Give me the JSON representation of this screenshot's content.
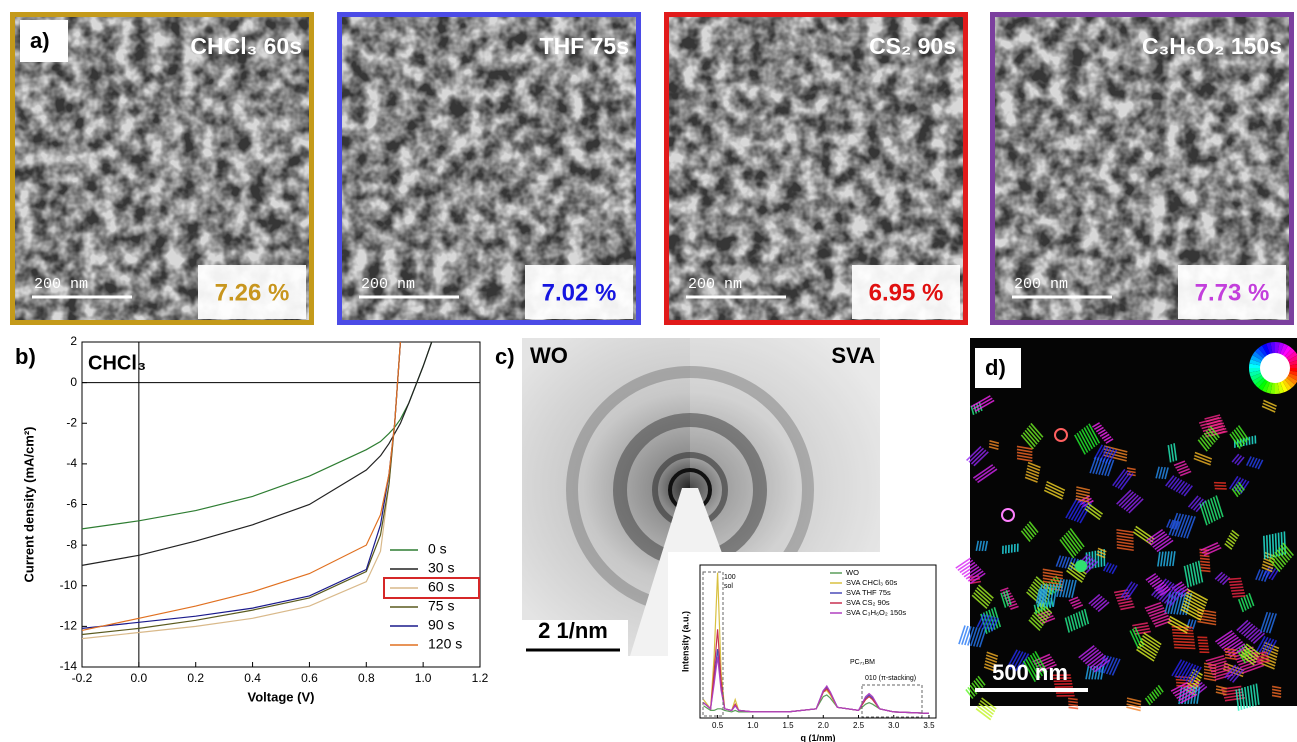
{
  "panel_a": {
    "label": "a)",
    "images": [
      {
        "solvent": "CHCl₃ 60s",
        "efficiency": "7.26 %",
        "scale_bar": "200 nm",
        "color": "#c49a1a",
        "efficiency_color": "#c8961e"
      },
      {
        "solvent": "THF 75s",
        "efficiency": "7.02 %",
        "scale_bar": "200 nm",
        "color": "#4b4be6",
        "efficiency_color": "#1515e0"
      },
      {
        "solvent": "CS₂ 90s",
        "efficiency": "6.95 %",
        "scale_bar": "200 nm",
        "color": "#e11a1a",
        "efficiency_color": "#e01010"
      },
      {
        "solvent": "C₃H₆O₂ 150s",
        "efficiency": "7.73 %",
        "scale_bar": "200 nm",
        "color": "#7b3f9e",
        "efficiency_color": "#c33fdc"
      }
    ]
  },
  "panel_b": {
    "label": "b)"
  },
  "panel_c": {
    "label": "c)",
    "left": "WO",
    "right": "SVA",
    "scale_bar": "2 1/nm"
  },
  "panel_d": {
    "label": "d)",
    "scale_bar": "500 nm"
  },
  "chart_data": [
    {
      "type": "line",
      "annotation": "CHCl₃",
      "x_label": "Voltage (V)",
      "y_label": "Current density (mA/cm²)",
      "x": [
        -0.2,
        0,
        0.2,
        0.4,
        0.6,
        0.8,
        0.85,
        0.88,
        0.9,
        0.92,
        0.95,
        1.0,
        1.03
      ],
      "series": [
        {
          "name": "0 s",
          "color": "#2e7d32",
          "values": [
            -7.2,
            -6.8,
            -6.3,
            -5.6,
            -4.6,
            -3.3,
            -2.9,
            -2.5,
            -2.2,
            -1.8,
            -1.0,
            0.8,
            2
          ]
        },
        {
          "name": "30 s",
          "color": "#222222",
          "values": [
            -9.0,
            -8.5,
            -7.8,
            -7.0,
            -6.0,
            -4.3,
            -3.6,
            -3.0,
            -2.5,
            -2.0,
            -1.0,
            0.8,
            2
          ]
        },
        {
          "name": "60 s",
          "color": "#d9b98a",
          "highlight": true,
          "values": [
            -12.6,
            -12.3,
            -12.0,
            -11.6,
            -11.0,
            -9.8,
            -8.3,
            -5,
            -2,
            2,
            null,
            null,
            null
          ]
        },
        {
          "name": "75 s",
          "color": "#5a5a1e",
          "values": [
            -12.4,
            -12.1,
            -11.7,
            -11.2,
            -10.6,
            -9.3,
            -7.5,
            -5,
            -2,
            2,
            null,
            null,
            null
          ]
        },
        {
          "name": "90 s",
          "color": "#1a1a8c",
          "values": [
            -12.1,
            -11.8,
            -11.5,
            -11.1,
            -10.5,
            -9.2,
            -7,
            -4.5,
            -2,
            2,
            null,
            null,
            null
          ]
        },
        {
          "name": "120 s",
          "color": "#e07020",
          "values": [
            -12.2,
            -11.6,
            -11.0,
            -10.3,
            -9.4,
            -8.0,
            -6.5,
            -4.5,
            -2,
            2,
            null,
            null,
            null
          ]
        }
      ],
      "xlim": [
        -0.2,
        1.2
      ],
      "ylim": [
        -14,
        2
      ],
      "xticks": [
        -0.2,
        {
          "value": 0,
          "label": "0.0"
        },
        0.2,
        0.4,
        0.6,
        0.8,
        {
          "value": 1,
          "label": "1.0"
        },
        1.2
      ],
      "yticks": [
        -14,
        -12,
        -10,
        -8,
        -6,
        -4,
        -2,
        0,
        2
      ]
    },
    {
      "type": "line",
      "x_label": "q (1/nm)",
      "y_label": "Intensity (a.u.)",
      "annotations": [
        "100",
        "sol",
        "PC₇₁BM",
        "010 (π-stacking)"
      ],
      "x": [
        0.3,
        0.4,
        0.45,
        0.5,
        0.55,
        0.6,
        0.7,
        0.75,
        0.8,
        1.0,
        1.5,
        1.9,
        2.0,
        2.05,
        2.1,
        2.2,
        2.5,
        2.6,
        2.65,
        2.7,
        2.8,
        3.0,
        3.5
      ],
      "series": [
        {
          "name": "WO",
          "color": "#5a9e5a",
          "values": [
            8,
            5,
            5,
            6,
            6,
            5,
            4,
            5,
            4,
            4,
            4,
            6,
            14,
            15,
            13,
            7,
            5,
            9,
            10,
            9,
            6,
            4,
            3
          ]
        },
        {
          "name": "SVA CHCl₃ 60s",
          "color": "#d8c040",
          "values": [
            12,
            6,
            40,
            95,
            30,
            6,
            5,
            12,
            5,
            4,
            4,
            6,
            17,
            18,
            15,
            7,
            5,
            12,
            14,
            12,
            6,
            4,
            3
          ]
        },
        {
          "name": "SVA THF 75s",
          "color": "#4a4ab8",
          "values": [
            10,
            6,
            25,
            45,
            20,
            6,
            5,
            8,
            5,
            4,
            4,
            6,
            18,
            20,
            17,
            7,
            5,
            13,
            15,
            13,
            6,
            4,
            3
          ]
        },
        {
          "name": "SVA CS₂ 90s",
          "color": "#c83050",
          "values": [
            10,
            6,
            30,
            58,
            24,
            6,
            5,
            9,
            5,
            4,
            4,
            6,
            17,
            19,
            16,
            7,
            5,
            12,
            14,
            12,
            6,
            4,
            3
          ]
        },
        {
          "name": "SVA C₃H₆O₂ 150s",
          "color": "#b040c0",
          "values": [
            10,
            6,
            22,
            40,
            18,
            6,
            5,
            8,
            5,
            4,
            4,
            6,
            18,
            21,
            17,
            7,
            5,
            14,
            16,
            14,
            6,
            4,
            3
          ]
        }
      ],
      "xlim": [
        0.25,
        3.6
      ],
      "ylim": [
        0,
        100
      ],
      "xticks": [
        0.5,
        {
          "value": 1,
          "label": "1.0"
        },
        1.5,
        {
          "value": 2,
          "label": "2.0"
        },
        2.5,
        {
          "value": 3,
          "label": "3.0"
        },
        3.5
      ]
    }
  ]
}
